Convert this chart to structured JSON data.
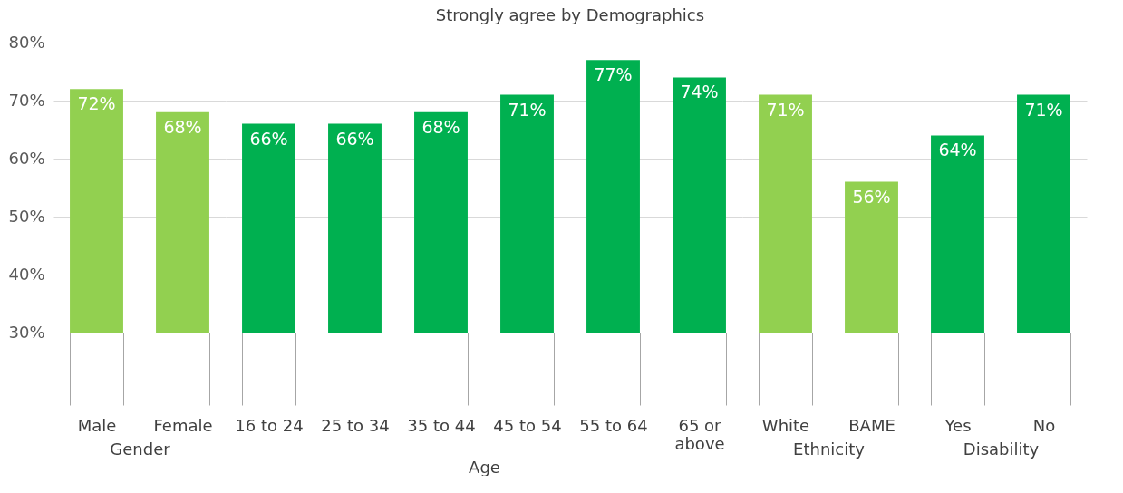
{
  "chart_data": [
    {
      "type": "other",
      "title": "Strongly agree by Demographics"
    },
    {
      "type": "bar",
      "xlabel": "Gender",
      "categories": [
        "Male",
        "Female"
      ],
      "values": [
        72,
        68
      ],
      "value_labels": [
        "72%",
        "68%"
      ],
      "color": "#92d050",
      "ylim": [
        30,
        80
      ],
      "yticks": [
        {
          "value": 30,
          "label": "30%"
        },
        {
          "value": 40,
          "label": "40%"
        },
        {
          "value": 50,
          "label": "50%"
        },
        {
          "value": 60,
          "label": "60%"
        },
        {
          "value": 70,
          "label": "70%"
        },
        {
          "value": 80,
          "label": "80%"
        }
      ],
      "grid": "y"
    },
    {
      "type": "bar",
      "xlabel": "Age",
      "categories": [
        "16 to 24",
        "25 to 34",
        "35 to 44",
        "45 to 54",
        "55 to 64",
        "65 or above"
      ],
      "values": [
        66,
        66,
        68,
        71,
        77,
        74
      ],
      "value_labels": [
        "66%",
        "66%",
        "68%",
        "71%",
        "77%",
        "74%"
      ],
      "color": "#00b050",
      "ylim": [
        30,
        80
      ],
      "yticks": [
        30,
        40,
        50,
        60,
        70,
        80
      ],
      "grid": "y",
      "tick_labels": "x"
    },
    {
      "type": "bar",
      "xlabel": "Ethnicity",
      "categories": [
        "White",
        "BAME"
      ],
      "values": [
        71,
        56
      ],
      "value_labels": [
        "71%",
        "56%"
      ],
      "color": "#92d050",
      "ylim": [
        30,
        80
      ],
      "yticks": [
        30,
        40,
        50,
        60,
        70,
        80
      ],
      "grid": "y",
      "tick_labels": "x"
    },
    {
      "type": "bar",
      "xlabel": "Disability",
      "categories": [
        "Yes",
        "No"
      ],
      "values": [
        64,
        71
      ],
      "value_labels": [
        "64%",
        "71%"
      ],
      "color": "#00b050",
      "ylim": [
        30,
        80
      ],
      "yticks": [
        30,
        40,
        50,
        60,
        70,
        80
      ],
      "grid": "y",
      "tick_labels": "x"
    }
  ]
}
